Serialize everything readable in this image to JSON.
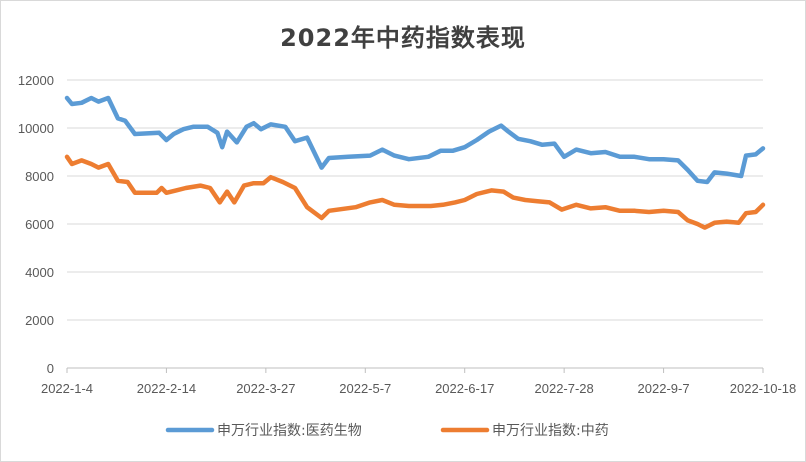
{
  "chart_data": {
    "type": "line",
    "title": "2022年中药指数表现",
    "xlabel": "",
    "ylabel": "",
    "ylim": [
      0,
      12000
    ],
    "y_ticks": [
      "0",
      "2000",
      "4000",
      "6000",
      "8000",
      "10000",
      "12000"
    ],
    "x_ticks": [
      "2022-1-4",
      "2022-2-14",
      "2022-3-27",
      "2022-5-7",
      "2022-6-17",
      "2022-7-28",
      "2022-9-7",
      "2022-10-18"
    ],
    "x_range": [
      "2022-1-4",
      "2022-10-18"
    ],
    "grid": "horizontal",
    "legend_position": "bottom",
    "series": [
      {
        "name": "申万行业指数:医药生物",
        "color": "#5b9bd5",
        "points": [
          [
            "2022-1-4",
            11250
          ],
          [
            "2022-1-6",
            11000
          ],
          [
            "2022-1-10",
            11050
          ],
          [
            "2022-1-14",
            11250
          ],
          [
            "2022-1-17",
            11100
          ],
          [
            "2022-1-21",
            11250
          ],
          [
            "2022-1-25",
            10400
          ],
          [
            "2022-1-28",
            10300
          ],
          [
            "2022-2-1",
            9750
          ],
          [
            "2022-2-11",
            9800
          ],
          [
            "2022-2-14",
            9500
          ],
          [
            "2022-2-17",
            9750
          ],
          [
            "2022-2-21",
            9950
          ],
          [
            "2022-2-25",
            10050
          ],
          [
            "2022-3-3",
            10050
          ],
          [
            "2022-3-7",
            9800
          ],
          [
            "2022-3-9",
            9200
          ],
          [
            "2022-3-11",
            9850
          ],
          [
            "2022-3-15",
            9400
          ],
          [
            "2022-3-19",
            10050
          ],
          [
            "2022-3-22",
            10200
          ],
          [
            "2022-3-25",
            9950
          ],
          [
            "2022-3-29",
            10150
          ],
          [
            "2022-4-4",
            10050
          ],
          [
            "2022-4-8",
            9450
          ],
          [
            "2022-4-13",
            9600
          ],
          [
            "2022-4-19",
            8350
          ],
          [
            "2022-4-22",
            8750
          ],
          [
            "2022-4-30",
            8800
          ],
          [
            "2022-5-9",
            8850
          ],
          [
            "2022-5-14",
            9100
          ],
          [
            "2022-5-19",
            8850
          ],
          [
            "2022-5-25",
            8700
          ],
          [
            "2022-6-2",
            8800
          ],
          [
            "2022-6-7",
            9050
          ],
          [
            "2022-6-12",
            9050
          ],
          [
            "2022-6-17",
            9200
          ],
          [
            "2022-6-22",
            9500
          ],
          [
            "2022-6-27",
            9850
          ],
          [
            "2022-7-2",
            10100
          ],
          [
            "2022-7-5",
            9850
          ],
          [
            "2022-7-9",
            9550
          ],
          [
            "2022-7-14",
            9450
          ],
          [
            "2022-7-19",
            9300
          ],
          [
            "2022-7-24",
            9350
          ],
          [
            "2022-7-28",
            8800
          ],
          [
            "2022-8-2",
            9100
          ],
          [
            "2022-8-8",
            8950
          ],
          [
            "2022-8-14",
            9000
          ],
          [
            "2022-8-20",
            8800
          ],
          [
            "2022-8-26",
            8800
          ],
          [
            "2022-9-1",
            8700
          ],
          [
            "2022-9-7",
            8700
          ],
          [
            "2022-9-13",
            8650
          ],
          [
            "2022-9-17",
            8250
          ],
          [
            "2022-9-21",
            7800
          ],
          [
            "2022-9-25",
            7750
          ],
          [
            "2022-9-28",
            8150
          ],
          [
            "2022-10-3",
            8100
          ],
          [
            "2022-10-9",
            8000
          ],
          [
            "2022-10-11",
            8850
          ],
          [
            "2022-10-15",
            8900
          ],
          [
            "2022-10-18",
            9150
          ]
        ]
      },
      {
        "name": "申万行业指数:中药",
        "color": "#ed7d31",
        "points": [
          [
            "2022-1-4",
            8800
          ],
          [
            "2022-1-6",
            8500
          ],
          [
            "2022-1-10",
            8650
          ],
          [
            "2022-1-14",
            8500
          ],
          [
            "2022-1-17",
            8350
          ],
          [
            "2022-1-21",
            8500
          ],
          [
            "2022-1-25",
            7800
          ],
          [
            "2022-1-29",
            7750
          ],
          [
            "2022-2-1",
            7300
          ],
          [
            "2022-2-10",
            7300
          ],
          [
            "2022-2-12",
            7500
          ],
          [
            "2022-2-14",
            7300
          ],
          [
            "2022-2-18",
            7400
          ],
          [
            "2022-2-22",
            7500
          ],
          [
            "2022-2-28",
            7600
          ],
          [
            "2022-3-4",
            7500
          ],
          [
            "2022-3-8",
            6900
          ],
          [
            "2022-3-11",
            7350
          ],
          [
            "2022-3-14",
            6900
          ],
          [
            "2022-3-18",
            7600
          ],
          [
            "2022-3-22",
            7700
          ],
          [
            "2022-3-26",
            7700
          ],
          [
            "2022-3-29",
            7950
          ],
          [
            "2022-4-3",
            7750
          ],
          [
            "2022-4-8",
            7500
          ],
          [
            "2022-4-13",
            6700
          ],
          [
            "2022-4-19",
            6250
          ],
          [
            "2022-4-22",
            6550
          ],
          [
            "2022-5-3",
            6700
          ],
          [
            "2022-5-9",
            6900
          ],
          [
            "2022-5-14",
            7000
          ],
          [
            "2022-5-19",
            6800
          ],
          [
            "2022-5-25",
            6750
          ],
          [
            "2022-6-3",
            6750
          ],
          [
            "2022-6-8",
            6800
          ],
          [
            "2022-6-13",
            6900
          ],
          [
            "2022-6-17",
            7000
          ],
          [
            "2022-6-22",
            7250
          ],
          [
            "2022-6-28",
            7400
          ],
          [
            "2022-7-3",
            7350
          ],
          [
            "2022-7-7",
            7100
          ],
          [
            "2022-7-12",
            7000
          ],
          [
            "2022-7-17",
            6950
          ],
          [
            "2022-7-22",
            6900
          ],
          [
            "2022-7-27",
            6600
          ],
          [
            "2022-8-2",
            6800
          ],
          [
            "2022-8-8",
            6650
          ],
          [
            "2022-8-14",
            6700
          ],
          [
            "2022-8-20",
            6550
          ],
          [
            "2022-8-26",
            6550
          ],
          [
            "2022-9-1",
            6500
          ],
          [
            "2022-9-7",
            6550
          ],
          [
            "2022-9-13",
            6500
          ],
          [
            "2022-9-17",
            6150
          ],
          [
            "2022-9-21",
            6000
          ],
          [
            "2022-9-24",
            5850
          ],
          [
            "2022-9-28",
            6050
          ],
          [
            "2022-10-3",
            6100
          ],
          [
            "2022-10-8",
            6050
          ],
          [
            "2022-10-11",
            6450
          ],
          [
            "2022-10-15",
            6500
          ],
          [
            "2022-10-18",
            6800
          ]
        ]
      }
    ]
  }
}
